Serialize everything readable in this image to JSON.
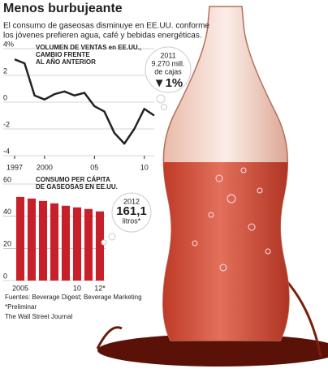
{
  "header": {
    "title": "Menos burbujeante",
    "subtitle": [
      "El consumo de gaseosas disminuye en EE.UU. conforme",
      "los jóvenes prefieren agua, café y bebidas energéticas."
    ]
  },
  "chart_data": [
    {
      "type": "line",
      "title": [
        "VOLUMEN DE VENTAS en EE.UU.,",
        "CAMBIO FRENTE",
        "AL AÑO ANTERIOR"
      ],
      "x": [
        1997,
        1998,
        1999,
        2000,
        2001,
        2002,
        2003,
        2004,
        2005,
        2006,
        2007,
        2008,
        2009,
        2010,
        2011
      ],
      "values": [
        3.2,
        2.9,
        0.5,
        0.2,
        0.6,
        0.8,
        0.5,
        0.7,
        -0.3,
        -0.7,
        -2.3,
        -3.1,
        -2.0,
        -0.5,
        -1.0
      ],
      "color": "#222222",
      "xlim": [
        1997,
        2011
      ],
      "xticks": [
        1997,
        2000,
        {
          "value": 2005,
          "label": "05"
        },
        {
          "value": 2010,
          "label": "10"
        }
      ],
      "ylim": [
        -4,
        4
      ],
      "yticks": [
        {
          "value": 4,
          "label": "4%"
        },
        2,
        0,
        -2,
        -4
      ],
      "grid": true,
      "annotation": [
        "2011",
        "9.270 mill.",
        "de cajas",
        "▼1%"
      ]
    },
    {
      "type": "bar",
      "title": [
        "CONSUMO PER CÁPITA",
        "DE GASEOSAS EN EE.UU."
      ],
      "categories": [
        "2005",
        null,
        null,
        null,
        null,
        "10",
        null,
        "12*"
      ],
      "values": [
        52,
        51,
        49.5,
        48,
        46.5,
        45.5,
        44.5,
        43
      ],
      "color": "#c8202b",
      "ylim": [
        0,
        60
      ],
      "yticks": [
        60,
        40,
        20,
        0
      ],
      "grid": true,
      "annotation": [
        "2012",
        "161,1",
        "litros*"
      ]
    }
  ],
  "footer": {
    "sources": "Fuentes: Beverage Digest; Beverage Marketing",
    "note": "*Preliminar",
    "credit": "The Wall Street Journal"
  }
}
